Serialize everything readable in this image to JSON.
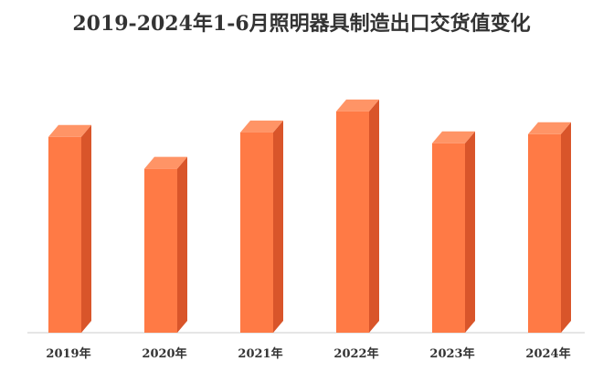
{
  "chart_data": {
    "type": "bar",
    "title": "2019-2024年1-6月照明器具制造出口交货值变化",
    "categories": [
      "2019年",
      "2020年",
      "2021年",
      "2022年",
      "2023年",
      "2024年"
    ],
    "values": [
      215,
      180,
      220,
      243,
      208,
      218
    ],
    "xlabel": "",
    "ylabel": "",
    "ylim": [
      0,
      270
    ],
    "grid": false,
    "legend": "none",
    "bar_3d": true
  },
  "colors": {
    "bar_front": "#FF7A45",
    "bar_top": "#FF9466",
    "bar_side": "#D9552A",
    "axis": "#cccccc"
  }
}
